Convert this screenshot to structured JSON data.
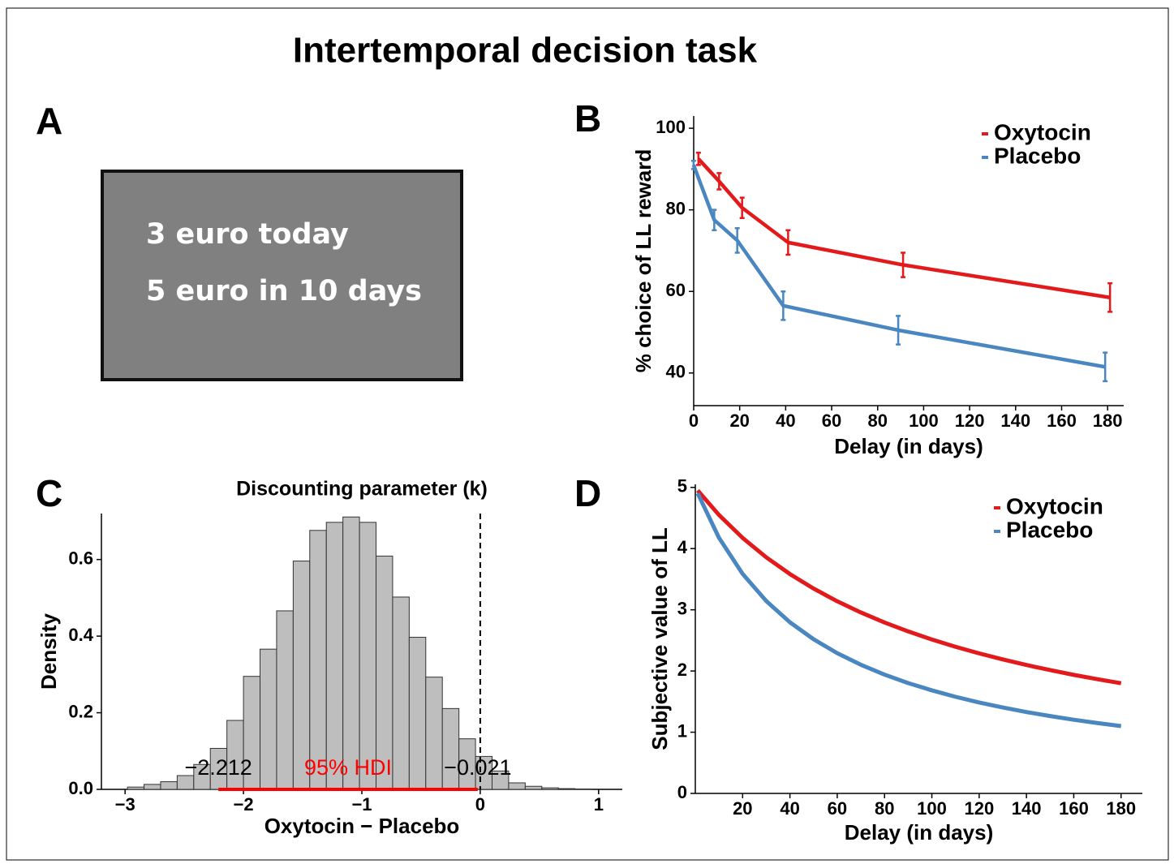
{
  "title": "Intertemporal decision task",
  "panel_a": {
    "label": "A",
    "lines": [
      "3 euro today",
      "5 euro in 10 days"
    ]
  },
  "chart_data": [
    {
      "type": "line",
      "label": "B",
      "xlabel": "Delay (in days)",
      "ylabel": "% choice of LL reward",
      "x": [
        1,
        10,
        20,
        40,
        90,
        180
      ],
      "series": [
        {
          "name": "Oxytocin",
          "color": "#e31a1c",
          "values": [
            92.5,
            87,
            80.5,
            72,
            66.5,
            58.5
          ],
          "errors": [
            1.5,
            2,
            2.5,
            3,
            3,
            3.5
          ]
        },
        {
          "name": "Placebo",
          "color": "#4a86bf",
          "values": [
            91,
            77.5,
            72.5,
            56.5,
            50.5,
            41.5
          ],
          "errors": [
            1,
            2.5,
            3,
            3.5,
            3.5,
            3.5
          ]
        }
      ],
      "xlim": [
        0,
        187
      ],
      "xticks": [
        0,
        20,
        40,
        60,
        80,
        100,
        120,
        140,
        160,
        180
      ],
      "ylim": [
        32,
        103
      ],
      "yticks": [
        40,
        60,
        80,
        100
      ],
      "legend": "upper right"
    },
    {
      "type": "histogram",
      "label": "C",
      "title": "Discounting parameter (k)",
      "xlabel": "Oxytocin − Placebo",
      "ylabel": "Density",
      "color": "#bebebe",
      "bins": [
        -2.98,
        -2.84,
        -2.7,
        -2.56,
        -2.42,
        -2.28,
        -2.14,
        -2.0,
        -1.86,
        -1.72,
        -1.58,
        -1.44,
        -1.3,
        -1.16,
        -1.02,
        -0.88,
        -0.74,
        -0.6,
        -0.46,
        -0.32,
        -0.18,
        -0.04,
        0.1,
        0.24,
        0.38,
        0.52,
        0.66,
        0.8,
        0.94
      ],
      "values": [
        0.006,
        0.013,
        0.02,
        0.036,
        0.065,
        0.107,
        0.18,
        0.295,
        0.366,
        0.466,
        0.596,
        0.676,
        0.697,
        0.711,
        0.697,
        0.609,
        0.502,
        0.397,
        0.293,
        0.211,
        0.132,
        0.086,
        0.048,
        0.017,
        0.008,
        0.004,
        0.002,
        0.001
      ],
      "xlim": [
        -3.2,
        1.2
      ],
      "xticks": [
        {
          "value": -3,
          "label": "−3"
        },
        {
          "value": -2,
          "label": "−2"
        },
        {
          "value": -1,
          "label": "−1"
        },
        0,
        1
      ],
      "ylim": [
        0,
        0.72
      ],
      "yticks": [
        {
          "value": 0,
          "label": "0.0"
        },
        0.2,
        0.4,
        0.6
      ],
      "vline": 0,
      "hdi": [
        {
          "value": -2.212,
          "label": "−2.212"
        },
        {
          "value": -0.021,
          "label": "−0.021"
        }
      ],
      "hdi_label": "95% HDI",
      "hdi_color": "#ff0000"
    },
    {
      "type": "line",
      "label": "D",
      "xlabel": "Delay (in days)",
      "ylabel": "Subjective value of LL",
      "x": [
        1,
        10,
        20,
        30,
        40,
        50,
        60,
        70,
        80,
        90,
        100,
        110,
        120,
        130,
        140,
        150,
        160,
        170,
        180
      ],
      "series": [
        {
          "name": "Oxytocin",
          "color": "#e31a1c",
          "values": [
            4.951,
            4.55,
            4.175,
            3.857,
            3.584,
            3.347,
            3.139,
            2.956,
            2.793,
            2.647,
            2.515,
            2.396,
            2.288,
            2.189,
            2.098,
            2.015,
            1.937,
            1.866,
            1.8
          ]
        },
        {
          "name": "Placebo",
          "color": "#4a86bf",
          "values": [
            4.903,
            4.177,
            3.587,
            3.143,
            2.796,
            2.519,
            2.291,
            2.102,
            1.941,
            1.803,
            1.684,
            1.579,
            1.486,
            1.404,
            1.33,
            1.264,
            1.204,
            1.15,
            1.1
          ]
        }
      ],
      "xlim": [
        0,
        189
      ],
      "xticks": [
        20,
        40,
        60,
        80,
        100,
        120,
        140,
        160,
        180
      ],
      "ylim": [
        0,
        5.05
      ],
      "yticks": [
        0,
        1,
        2,
        3,
        4,
        5
      ],
      "legend": "upper right"
    }
  ]
}
